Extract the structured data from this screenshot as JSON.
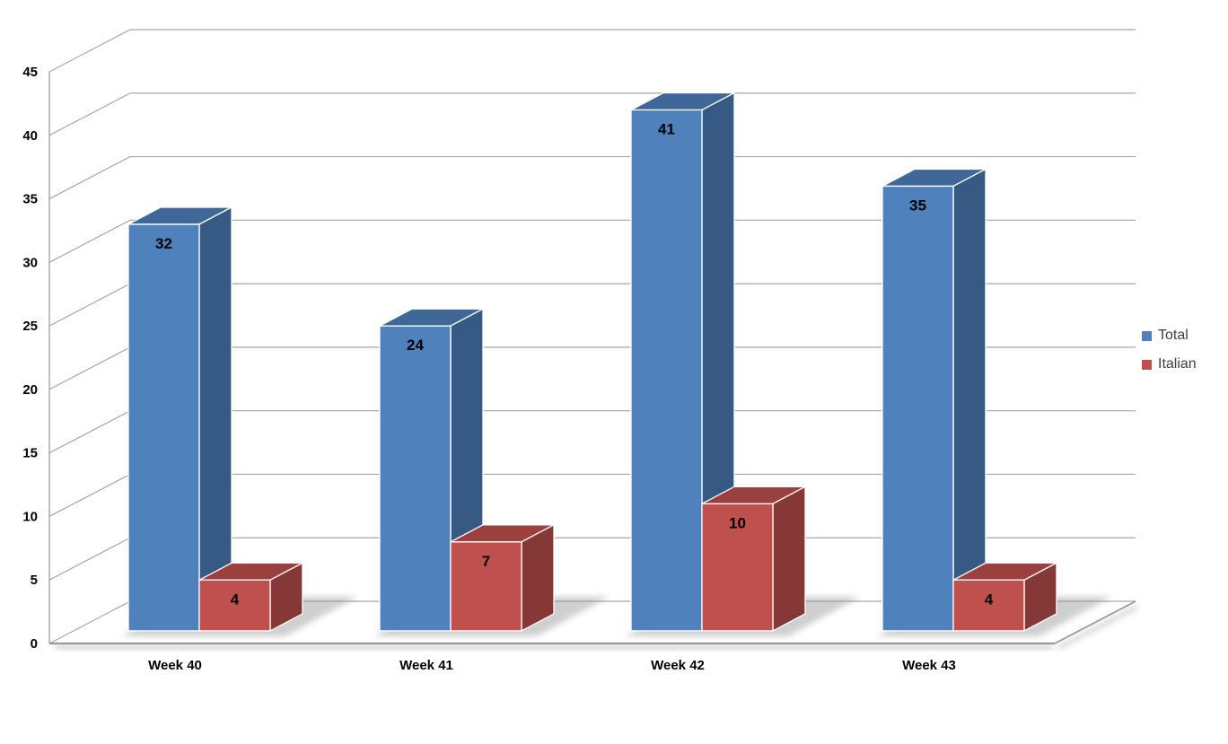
{
  "chart_data": {
    "type": "bar",
    "style": "3d-clustered-column",
    "title": "",
    "xlabel": "",
    "ylabel": "",
    "categories": [
      "Week 40",
      "Week 41",
      "Week 42",
      "Week 43"
    ],
    "series": [
      {
        "name": "Total",
        "color": "#4F81BD",
        "values": [
          32,
          24,
          41,
          35
        ]
      },
      {
        "name": "Italian",
        "color": "#C0504D",
        "values": [
          4,
          7,
          10,
          4
        ]
      }
    ],
    "data_labels": [
      {
        "series": "Total",
        "labels": [
          "32",
          "24",
          "41",
          "35"
        ]
      },
      {
        "series": "Italian",
        "labels": [
          "4",
          "7",
          "10",
          "4"
        ]
      }
    ],
    "ylim": [
      0,
      45
    ],
    "yticks": [
      0,
      5,
      10,
      15,
      20,
      25,
      30,
      35,
      40,
      45
    ],
    "grid": true,
    "legend_position": "right",
    "colors": {
      "gridline": "#A6A6A6",
      "axis_line": "#999999",
      "tick_label": "#000000",
      "category_label": "#000000",
      "value_label": "#000000",
      "legend_text": "#3F3F3F",
      "background": "#FFFFFF",
      "shadow": "#8F8F8F"
    }
  }
}
